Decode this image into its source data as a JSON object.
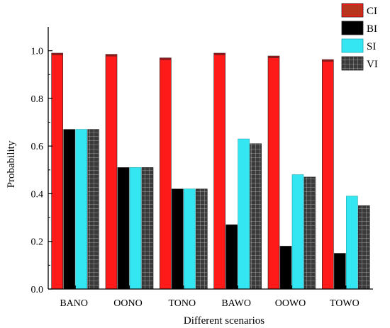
{
  "chart_data": {
    "type": "bar",
    "xlabel": "Different scenarios",
    "ylabel": "Probability",
    "ylim": [
      0,
      1.1
    ],
    "yticks": [
      "0.0",
      "0.2",
      "0.4",
      "0.6",
      "0.8",
      "1.0"
    ],
    "categories": [
      "BANO",
      "OONO",
      "TONO",
      "BAWO",
      "OOWO",
      "TOWO"
    ],
    "series": [
      {
        "name": "CI",
        "color": "#ff1a1a",
        "values": [
          0.99,
          0.985,
          0.97,
          0.99,
          0.978,
          0.963
        ]
      },
      {
        "name": "BI",
        "color": "#000000",
        "values": [
          0.67,
          0.51,
          0.42,
          0.27,
          0.18,
          0.15
        ]
      },
      {
        "name": "SI",
        "color": "#33e6f2",
        "values": [
          0.67,
          0.51,
          0.42,
          0.63,
          0.48,
          0.39
        ]
      },
      {
        "name": "VI",
        "color": "#333333",
        "values": [
          0.67,
          0.51,
          0.42,
          0.61,
          0.47,
          0.35
        ]
      }
    ],
    "grid": false,
    "legend_position": "top-right"
  }
}
